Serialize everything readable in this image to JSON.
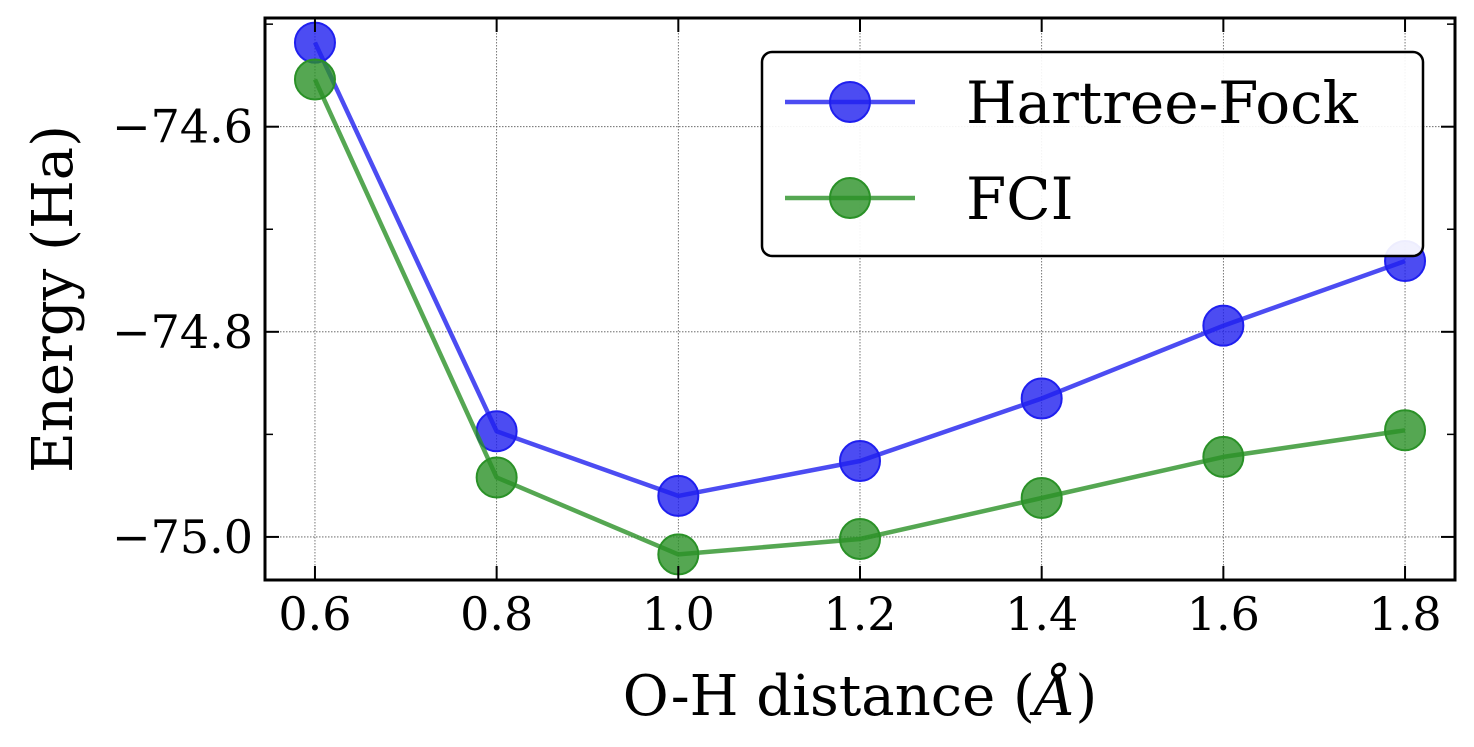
{
  "chart_data": {
    "type": "line",
    "title": "",
    "xlabel": "O-H distance (",
    "xlabel_unit": "Å",
    "xlabel_close": ")",
    "ylabel": "Energy (Ha)",
    "xlim": [
      0.545,
      1.855
    ],
    "ylim": [
      -75.042,
      -74.494
    ],
    "x": [
      0.6,
      0.8,
      1.0,
      1.2,
      1.4,
      1.6,
      1.8
    ],
    "x_ticks": [
      0.6,
      0.8,
      1.0,
      1.2,
      1.4,
      1.6,
      1.8
    ],
    "x_tick_labels": [
      "0.6",
      "0.8",
      "1.0",
      "1.2",
      "1.4",
      "1.6",
      "1.8"
    ],
    "y_ticks": [
      -74.6,
      -74.8,
      -75.0
    ],
    "y_tick_labels": [
      "−74.6",
      "−74.8",
      "−75.0"
    ],
    "y_minor_ticks": [
      -74.5,
      -74.7,
      -74.9
    ],
    "grid": true,
    "legend_position": "top-right",
    "series": [
      {
        "name": "Hartree-Fock",
        "color": "#1f1fef",
        "values": [
          -74.518,
          -74.897,
          -74.96,
          -74.926,
          -74.865,
          -74.794,
          -74.731
        ]
      },
      {
        "name": "FCI",
        "color": "#2a9127",
        "values": [
          -74.554,
          -74.942,
          -75.017,
          -75.002,
          -74.962,
          -74.922,
          -74.896
        ]
      }
    ]
  }
}
